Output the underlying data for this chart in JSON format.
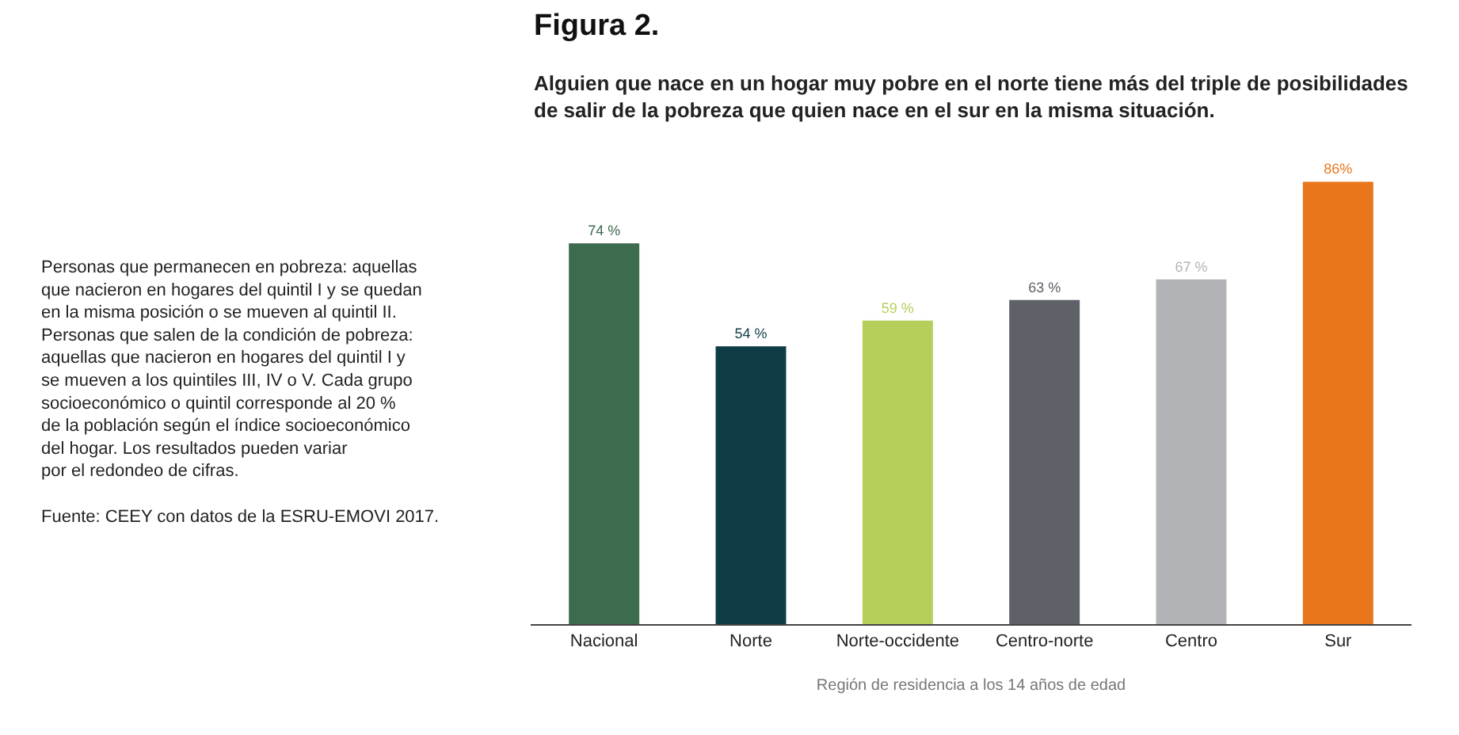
{
  "chart_data": {
    "type": "bar",
    "title": "Figura 2.",
    "subtitle": "Alguien que nace en un hogar muy pobre en el norte tiene más del triple de posibilidades\nde salir de la pobreza que quien nace en el sur en la misma situación.",
    "xlabel": "Región de residencia a los 14 años de edad",
    "categories": [
      "Nacional",
      "Norte",
      "Norte-occidente",
      "Centro-norte",
      "Centro",
      "Sur"
    ],
    "values": [
      74,
      54,
      59,
      63,
      67,
      86
    ],
    "value_labels": [
      "74 %",
      "54 %",
      "59 %",
      "63 %",
      "67 %",
      "86%"
    ],
    "colors": [
      "#3d6b4e",
      "#0f3d47",
      "#b5cf5a",
      "#5f6169",
      "#b2b3b6",
      "#e8771c"
    ],
    "annotations": [
      "Personas que permanecen en pobreza: aquellas\nque nacieron en hogares del quintil I y se quedan\nen la misma posición o se mueven al quintil II.\nPersonas que salen de la condición de pobreza:\naquellas que nacieron en hogares del quintil I y\nse mueven a los quintiles III, IV o V. Cada grupo\nsocioeconómico o quintil corresponde al 20 %\nde la población según el índice socioeconómico\ndel hogar. Los resultados pueden variar\npor el redondeo de cifras.\n\nFuente: CEEY con datos de la ESRU-EMOVI 2017."
    ],
    "legend": false
  }
}
